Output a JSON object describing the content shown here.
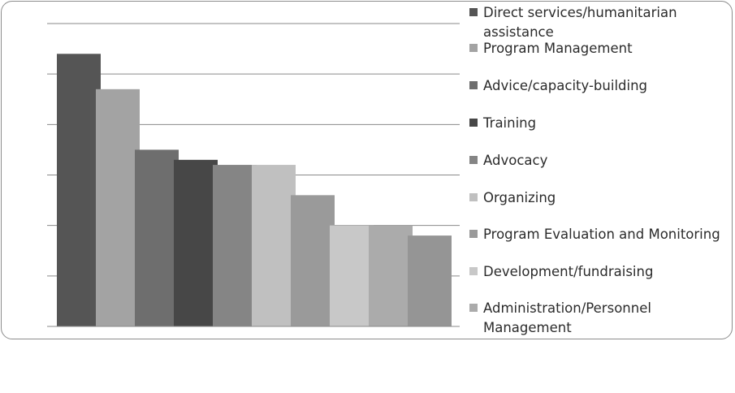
{
  "chart_data": {
    "type": "bar",
    "title": "",
    "xlabel": "",
    "ylabel": "",
    "ylim": [
      0,
      6
    ],
    "grid": true,
    "legend_position": "right",
    "series": [
      {
        "name": "Direct services/humanitarian assistance",
        "value": 5.4,
        "color": "#555555"
      },
      {
        "name": "Program Management",
        "value": 4.7,
        "color": "#a3a3a3"
      },
      {
        "name": "Advice/capacity-building",
        "value": 3.5,
        "color": "#6e6e6e"
      },
      {
        "name": "Training",
        "value": 3.3,
        "color": "#474747"
      },
      {
        "name": "Advocacy",
        "value": 3.2,
        "color": "#858585"
      },
      {
        "name": "Organizing",
        "value": 3.2,
        "color": "#c0c0c0"
      },
      {
        "name": "Program Evaluation and Monitoring",
        "value": 2.6,
        "color": "#9a9a9a"
      },
      {
        "name": "Development/fundraising",
        "value": 2.0,
        "color": "#c8c8c8"
      },
      {
        "name": "Administration/Personnel Management",
        "value": 2.0,
        "color": "#ababab"
      }
    ],
    "extra_bar": {
      "value": 1.8,
      "color": "#959595"
    }
  }
}
